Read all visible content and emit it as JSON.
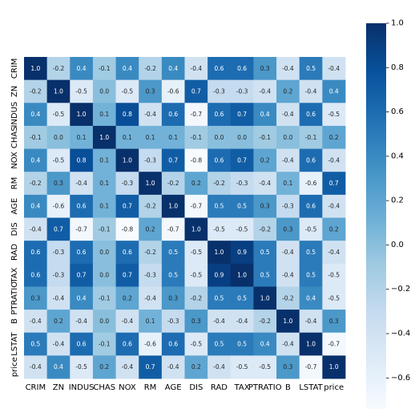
{
  "chart_data": {
    "type": "heatmap",
    "title": "",
    "xlabel": "",
    "ylabel": "",
    "labels": [
      "CRIM",
      "ZN",
      "INDUS",
      "CHAS",
      "NOX",
      "RM",
      "AGE",
      "DIS",
      "RAD",
      "TAX",
      "PTRATIO",
      "B",
      "LSTAT",
      "price"
    ],
    "values": [
      [
        1.0,
        -0.2,
        0.4,
        -0.1,
        0.4,
        -0.2,
        0.4,
        -0.4,
        0.6,
        0.6,
        0.3,
        -0.4,
        0.5,
        -0.4
      ],
      [
        -0.2,
        1.0,
        -0.5,
        -0.0,
        -0.5,
        0.3,
        -0.6,
        0.7,
        -0.3,
        -0.3,
        -0.4,
        0.2,
        -0.4,
        0.4
      ],
      [
        0.4,
        -0.5,
        1.0,
        0.1,
        0.8,
        -0.4,
        0.6,
        -0.7,
        0.6,
        0.7,
        0.4,
        -0.4,
        0.6,
        -0.5
      ],
      [
        -0.1,
        -0.0,
        0.1,
        1.0,
        0.1,
        0.1,
        0.1,
        -0.1,
        -0.0,
        -0.0,
        -0.1,
        0.0,
        -0.1,
        0.2
      ],
      [
        0.4,
        -0.5,
        0.8,
        0.1,
        1.0,
        -0.3,
        0.7,
        -0.8,
        0.6,
        0.7,
        0.2,
        -0.4,
        0.6,
        -0.4
      ],
      [
        -0.2,
        0.3,
        -0.4,
        0.1,
        -0.3,
        1.0,
        -0.2,
        0.2,
        -0.2,
        -0.3,
        -0.4,
        0.1,
        -0.6,
        0.7
      ],
      [
        0.4,
        -0.6,
        0.6,
        0.1,
        0.7,
        -0.2,
        1.0,
        -0.7,
        0.5,
        0.5,
        0.3,
        -0.3,
        0.6,
        -0.4
      ],
      [
        -0.4,
        0.7,
        -0.7,
        -0.1,
        -0.8,
        0.2,
        -0.7,
        1.0,
        -0.5,
        -0.5,
        -0.2,
        0.3,
        -0.5,
        0.2
      ],
      [
        0.6,
        -0.3,
        0.6,
        -0.0,
        0.6,
        -0.2,
        0.5,
        -0.5,
        1.0,
        0.9,
        0.5,
        -0.4,
        0.5,
        -0.4
      ],
      [
        0.6,
        -0.3,
        0.7,
        -0.0,
        0.7,
        -0.3,
        0.5,
        -0.5,
        0.9,
        1.0,
        0.5,
        -0.4,
        0.5,
        -0.5
      ],
      [
        0.3,
        -0.4,
        0.4,
        -0.1,
        0.2,
        -0.4,
        0.3,
        -0.2,
        0.5,
        0.5,
        1.0,
        -0.2,
        0.4,
        -0.5
      ],
      [
        -0.4,
        0.2,
        -0.4,
        0.0,
        -0.4,
        0.1,
        -0.3,
        0.3,
        -0.4,
        -0.4,
        -0.2,
        1.0,
        -0.4,
        0.3
      ],
      [
        0.5,
        -0.4,
        0.6,
        -0.1,
        0.6,
        -0.6,
        0.6,
        -0.5,
        0.5,
        0.5,
        0.4,
        -0.4,
        1.0,
        -0.7
      ],
      [
        -0.4,
        0.4,
        -0.5,
        0.2,
        -0.4,
        0.7,
        -0.4,
        0.2,
        -0.4,
        -0.5,
        -0.5,
        0.3,
        -0.7,
        1.0
      ]
    ],
    "colormap": "Blues",
    "vmin": -0.74,
    "vmax": 1.0,
    "colorbar": {
      "ticks": [
        1.0,
        0.8,
        0.6,
        0.4,
        0.2,
        0.0,
        -0.2,
        -0.4,
        -0.6
      ],
      "tick_labels": [
        "1.0",
        "0.8",
        "0.6",
        "0.4",
        "0.2",
        "0.0",
        "−0.2",
        "−0.4",
        "−0.6"
      ]
    }
  }
}
